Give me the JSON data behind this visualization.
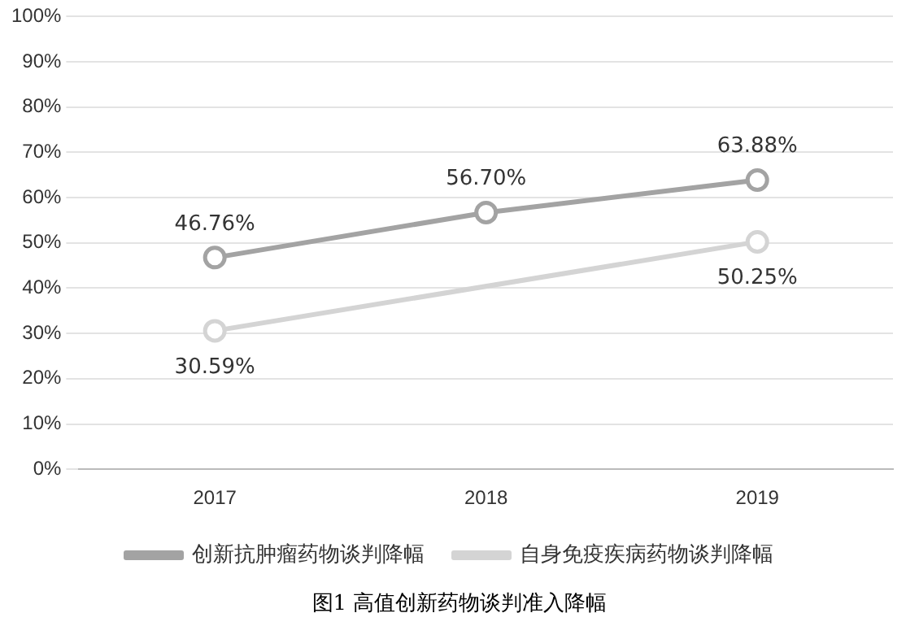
{
  "chart_data": {
    "type": "line",
    "title": "图1  高值创新药物谈判准入降幅",
    "categories": [
      "2017",
      "2018",
      "2019"
    ],
    "series": [
      {
        "name": "创新抗肿瘤药物谈判降幅",
        "color": "#a3a3a3",
        "values": [
          46.76,
          56.7,
          63.88
        ],
        "value_labels": [
          "46.76%",
          "56.70%",
          "63.88%"
        ]
      },
      {
        "name": "自身免疫疾病药物谈判降幅",
        "color": "#d4d4d4",
        "values": [
          30.59,
          null,
          50.25
        ],
        "value_labels": [
          "30.59%",
          null,
          "50.25%"
        ]
      }
    ],
    "ylim": [
      0,
      100
    ],
    "yticks": [
      {
        "value": 0,
        "label": "0%"
      },
      {
        "value": 10,
        "label": "10%"
      },
      {
        "value": 20,
        "label": "20%"
      },
      {
        "value": 30,
        "label": "30%"
      },
      {
        "value": 40,
        "label": "40%"
      },
      {
        "value": 50,
        "label": "50%"
      },
      {
        "value": 60,
        "label": "60%"
      },
      {
        "value": 70,
        "label": "70%"
      },
      {
        "value": 80,
        "label": "80%"
      },
      {
        "value": 90,
        "label": "90%"
      },
      {
        "value": 100,
        "label": "100%"
      }
    ],
    "grid": "y",
    "legend": "bottom",
    "marker": "circle"
  }
}
